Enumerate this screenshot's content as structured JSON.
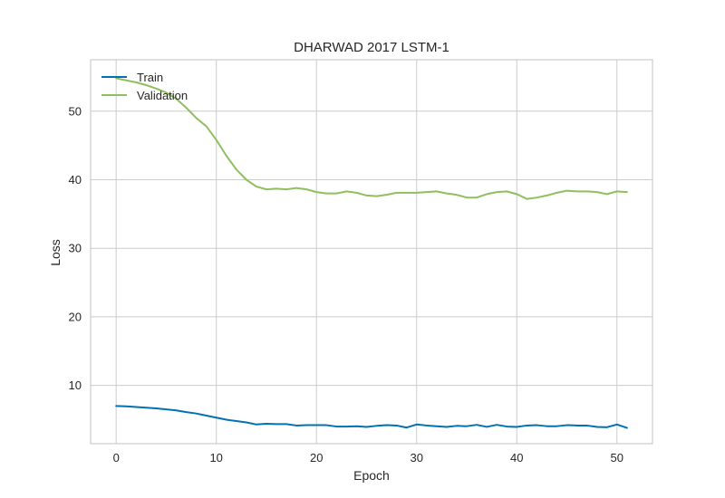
{
  "chart_data": {
    "type": "line",
    "title": "DHARWAD 2017 LSTM-1",
    "xlabel": "Epoch",
    "ylabel": "Loss",
    "xlim": [
      -2.55,
      53.55
    ],
    "ylim": [
      1.5,
      57.5
    ],
    "xticks": [
      0,
      10,
      20,
      30,
      40,
      50
    ],
    "yticks": [
      10,
      20,
      30,
      40,
      50
    ],
    "grid": true,
    "legend_position": "top-left",
    "x": [
      0,
      1,
      2,
      3,
      4,
      5,
      6,
      7,
      8,
      9,
      10,
      11,
      12,
      13,
      14,
      15,
      16,
      17,
      18,
      19,
      20,
      21,
      22,
      23,
      24,
      25,
      26,
      27,
      28,
      29,
      30,
      31,
      32,
      33,
      34,
      35,
      36,
      37,
      38,
      39,
      40,
      41,
      42,
      43,
      44,
      45,
      46,
      47,
      48,
      49,
      50,
      51
    ],
    "series": [
      {
        "name": "Train",
        "color": "#0072b2",
        "values": [
          7.0,
          6.95,
          6.85,
          6.75,
          6.65,
          6.5,
          6.35,
          6.1,
          5.9,
          5.6,
          5.3,
          5.0,
          4.8,
          4.6,
          4.3,
          4.4,
          4.35,
          4.35,
          4.15,
          4.2,
          4.2,
          4.2,
          4.0,
          4.0,
          4.05,
          3.95,
          4.1,
          4.2,
          4.15,
          3.85,
          4.3,
          4.15,
          4.05,
          3.95,
          4.1,
          4.05,
          4.25,
          3.95,
          4.25,
          4.0,
          3.95,
          4.15,
          4.2,
          4.05,
          4.05,
          4.2,
          4.15,
          4.15,
          3.95,
          3.9,
          4.3,
          3.8
        ]
      },
      {
        "name": "Validation",
        "color": "#8fbf5f",
        "values": [
          54.8,
          54.5,
          54.2,
          53.8,
          53.3,
          52.7,
          51.8,
          50.5,
          49.0,
          47.8,
          45.8,
          43.5,
          41.5,
          40.0,
          39.0,
          38.6,
          38.7,
          38.6,
          38.8,
          38.6,
          38.2,
          38.0,
          38.0,
          38.3,
          38.1,
          37.7,
          37.6,
          37.8,
          38.1,
          38.1,
          38.1,
          38.2,
          38.3,
          38.0,
          37.8,
          37.4,
          37.4,
          37.9,
          38.2,
          38.3,
          37.9,
          37.2,
          37.4,
          37.7,
          38.1,
          38.4,
          38.3,
          38.3,
          38.2,
          37.9,
          38.3,
          38.2
        ]
      }
    ]
  }
}
